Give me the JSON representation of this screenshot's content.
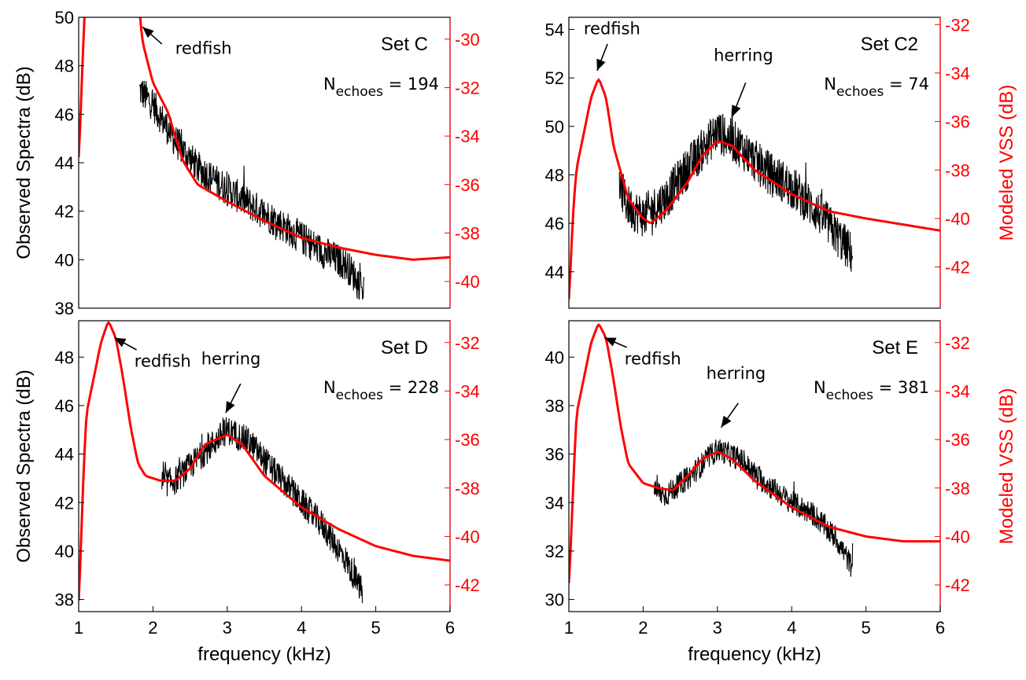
{
  "colors": {
    "observed": "#000000",
    "modeled": "#ff0000",
    "axis_right": "#ff0000",
    "axis_left": "#000000"
  },
  "chart_data": [
    {
      "type": "line",
      "set_label": "Set C",
      "n_echoes_value": "194",
      "xlabel": "",
      "ylabel_left": "Observed Spectra (dB)",
      "ylabel_right": "",
      "xlim": [
        1,
        6
      ],
      "ylim_left": [
        38,
        50
      ],
      "ylim_right": [
        -41.1,
        -29.1
      ],
      "x_ticks": [],
      "y_ticks_left": [
        "38",
        "40",
        "42",
        "44",
        "46",
        "48",
        "50"
      ],
      "y_ticks_right": [
        "-40",
        "-38",
        "-36",
        "-34",
        "-32",
        "-30"
      ],
      "annotations": [
        {
          "text": "redfish",
          "tip": [
            1.86,
            49.6
          ],
          "tail": [
            2.12,
            48.9
          ],
          "text_at": [
            2.3,
            48.5
          ]
        }
      ],
      "observed": {
        "x_start": 1.82,
        "x_end": 4.84,
        "noise": 0.7,
        "points": [
          [
            1.82,
            47.0
          ],
          [
            2.0,
            46.4
          ],
          [
            2.3,
            44.9
          ],
          [
            2.6,
            43.8
          ],
          [
            3.0,
            42.9
          ],
          [
            3.5,
            41.9
          ],
          [
            4.0,
            40.9
          ],
          [
            4.3,
            40.3
          ],
          [
            4.6,
            39.8
          ],
          [
            4.84,
            38.8
          ]
        ]
      },
      "modeled": {
        "points": [
          [
            1.0,
            -35.3
          ],
          [
            1.05,
            -31.0
          ],
          [
            1.1,
            -27.5
          ],
          [
            1.8,
            -28.0
          ],
          [
            1.85,
            -30.0
          ],
          [
            2.0,
            -31.8
          ],
          [
            2.2,
            -33.0
          ],
          [
            2.4,
            -35.0
          ],
          [
            2.6,
            -36.0
          ],
          [
            3.0,
            -36.7
          ],
          [
            3.5,
            -37.5
          ],
          [
            4.0,
            -38.2
          ],
          [
            4.5,
            -38.6
          ],
          [
            5.0,
            -38.9
          ],
          [
            5.5,
            -39.1
          ],
          [
            6.0,
            -39.0
          ]
        ]
      }
    },
    {
      "type": "line",
      "set_label": "Set C2",
      "n_echoes_value": "74",
      "xlabel": "",
      "ylabel_left": "",
      "ylabel_right": "Modeled VSS (dB)",
      "xlim": [
        1,
        6
      ],
      "ylim_left": [
        42.5,
        54.5
      ],
      "ylim_right": [
        -43.7,
        -31.7
      ],
      "x_ticks": [],
      "y_ticks_left": [
        "44",
        "46",
        "48",
        "50",
        "52",
        "54"
      ],
      "y_ticks_right": [
        "-42",
        "-40",
        "-38",
        "-36",
        "-34",
        "-32"
      ],
      "annotations": [
        {
          "text": "redfish",
          "tip": [
            1.38,
            52.3
          ],
          "tail": [
            1.52,
            53.4
          ],
          "text_at": [
            1.2,
            53.8
          ]
        },
        {
          "text": "herring",
          "tip": [
            3.2,
            50.4
          ],
          "tail": [
            3.38,
            51.8
          ],
          "text_at": [
            2.95,
            52.7
          ]
        }
      ],
      "observed": {
        "x_start": 1.68,
        "x_end": 4.82,
        "noise": 0.9,
        "points": [
          [
            1.68,
            47.5
          ],
          [
            1.8,
            46.7
          ],
          [
            2.0,
            46.3
          ],
          [
            2.3,
            47.0
          ],
          [
            2.6,
            48.3
          ],
          [
            3.0,
            49.8
          ],
          [
            3.3,
            49.2
          ],
          [
            3.6,
            48.3
          ],
          [
            4.0,
            47.5
          ],
          [
            4.4,
            46.3
          ],
          [
            4.82,
            44.7
          ]
        ]
      },
      "modeled": {
        "points": [
          [
            1.0,
            -43.7
          ],
          [
            1.05,
            -40.0
          ],
          [
            1.1,
            -38.0
          ],
          [
            1.2,
            -36.5
          ],
          [
            1.3,
            -35.0
          ],
          [
            1.4,
            -34.2
          ],
          [
            1.5,
            -35.0
          ],
          [
            1.6,
            -37.0
          ],
          [
            1.8,
            -39.2
          ],
          [
            2.0,
            -40.0
          ],
          [
            2.1,
            -40.2
          ],
          [
            2.3,
            -39.7
          ],
          [
            2.6,
            -38.5
          ],
          [
            2.8,
            -37.4
          ],
          [
            3.0,
            -36.8
          ],
          [
            3.2,
            -37.0
          ],
          [
            3.5,
            -38.0
          ],
          [
            4.0,
            -39.0
          ],
          [
            4.5,
            -39.7
          ],
          [
            5.0,
            -40.0
          ],
          [
            6.0,
            -40.5
          ]
        ]
      }
    },
    {
      "type": "line",
      "set_label": "Set D",
      "n_echoes_value": "228",
      "xlabel": "frequency (kHz)",
      "ylabel_left": "Observed Spectra (dB)",
      "ylabel_right": "",
      "xlim": [
        1,
        6
      ],
      "ylim_left": [
        37.5,
        49.5
      ],
      "ylim_right": [
        -43.1,
        -31.1
      ],
      "x_ticks": [
        "1",
        "2",
        "3",
        "4",
        "5",
        "6"
      ],
      "y_ticks_left": [
        "38",
        "40",
        "42",
        "44",
        "46",
        "48"
      ],
      "y_ticks_right": [
        "-42",
        "-40",
        "-38",
        "-36",
        "-34",
        "-32"
      ],
      "annotations": [
        {
          "text": "redfish",
          "tip": [
            1.48,
            48.8
          ],
          "tail": [
            1.78,
            48.3
          ],
          "text_at": [
            1.75,
            47.6
          ]
        },
        {
          "text": "herring",
          "tip": [
            2.98,
            45.7
          ],
          "tail": [
            3.18,
            46.9
          ],
          "text_at": [
            2.65,
            47.7
          ]
        }
      ],
      "observed": {
        "x_start": 2.12,
        "x_end": 4.82,
        "noise": 0.6,
        "points": [
          [
            2.12,
            42.8
          ],
          [
            2.3,
            42.9
          ],
          [
            2.6,
            43.8
          ],
          [
            3.0,
            45.0
          ],
          [
            3.3,
            44.5
          ],
          [
            3.6,
            43.4
          ],
          [
            4.0,
            42.0
          ],
          [
            4.3,
            41.0
          ],
          [
            4.6,
            39.6
          ],
          [
            4.82,
            38.3
          ]
        ]
      },
      "modeled": {
        "points": [
          [
            1.0,
            -43.1
          ],
          [
            1.05,
            -38.5
          ],
          [
            1.1,
            -35.0
          ],
          [
            1.2,
            -33.5
          ],
          [
            1.3,
            -32.0
          ],
          [
            1.4,
            -31.1
          ],
          [
            1.5,
            -31.8
          ],
          [
            1.6,
            -33.5
          ],
          [
            1.7,
            -35.5
          ],
          [
            1.8,
            -37.0
          ],
          [
            1.9,
            -37.5
          ],
          [
            2.1,
            -37.7
          ],
          [
            2.3,
            -37.7
          ],
          [
            2.5,
            -37.2
          ],
          [
            2.7,
            -36.2
          ],
          [
            3.0,
            -35.8
          ],
          [
            3.2,
            -36.2
          ],
          [
            3.5,
            -37.5
          ],
          [
            4.0,
            -38.8
          ],
          [
            4.5,
            -39.7
          ],
          [
            5.0,
            -40.4
          ],
          [
            5.5,
            -40.8
          ],
          [
            6.0,
            -41.0
          ]
        ]
      }
    },
    {
      "type": "line",
      "set_label": "Set E",
      "n_echoes_value": "381",
      "xlabel": "frequency (kHz)",
      "ylabel_left": "",
      "ylabel_right": "Modeled VSS (dB)",
      "xlim": [
        1,
        6
      ],
      "ylim_left": [
        29.5,
        41.5
      ],
      "ylim_right": [
        -43.1,
        -31.1
      ],
      "x_ticks": [
        "1",
        "2",
        "3",
        "4",
        "5",
        "6"
      ],
      "y_ticks_left": [
        "30",
        "32",
        "34",
        "36",
        "38",
        "40"
      ],
      "y_ticks_right": [
        "-42",
        "-40",
        "-38",
        "-36",
        "-34",
        "-32"
      ],
      "annotations": [
        {
          "text": "redfish",
          "tip": [
            1.48,
            40.8
          ],
          "tail": [
            1.78,
            40.4
          ],
          "text_at": [
            1.75,
            39.7
          ]
        },
        {
          "text": "herring",
          "tip": [
            3.05,
            37.1
          ],
          "tail": [
            3.28,
            38.1
          ],
          "text_at": [
            2.85,
            39.1
          ]
        }
      ],
      "observed": {
        "x_start": 2.15,
        "x_end": 4.82,
        "noise": 0.5,
        "points": [
          [
            2.15,
            34.5
          ],
          [
            2.3,
            34.3
          ],
          [
            2.6,
            35.0
          ],
          [
            3.0,
            36.2
          ],
          [
            3.3,
            35.8
          ],
          [
            3.6,
            34.9
          ],
          [
            4.0,
            34.0
          ],
          [
            4.3,
            33.5
          ],
          [
            4.6,
            32.5
          ],
          [
            4.82,
            31.3
          ]
        ]
      },
      "modeled": {
        "points": [
          [
            1.0,
            -42.3
          ],
          [
            1.05,
            -38.5
          ],
          [
            1.1,
            -35.0
          ],
          [
            1.2,
            -33.5
          ],
          [
            1.3,
            -32.0
          ],
          [
            1.4,
            -31.2
          ],
          [
            1.5,
            -31.8
          ],
          [
            1.6,
            -33.5
          ],
          [
            1.7,
            -35.5
          ],
          [
            1.8,
            -37.0
          ],
          [
            2.0,
            -37.8
          ],
          [
            2.2,
            -38.0
          ],
          [
            2.4,
            -38.1
          ],
          [
            2.6,
            -37.5
          ],
          [
            2.8,
            -36.8
          ],
          [
            3.0,
            -36.5
          ],
          [
            3.2,
            -36.8
          ],
          [
            3.5,
            -37.7
          ],
          [
            4.0,
            -38.8
          ],
          [
            4.5,
            -39.6
          ],
          [
            5.0,
            -40.0
          ],
          [
            5.5,
            -40.2
          ],
          [
            6.0,
            -40.2
          ]
        ]
      }
    }
  ]
}
